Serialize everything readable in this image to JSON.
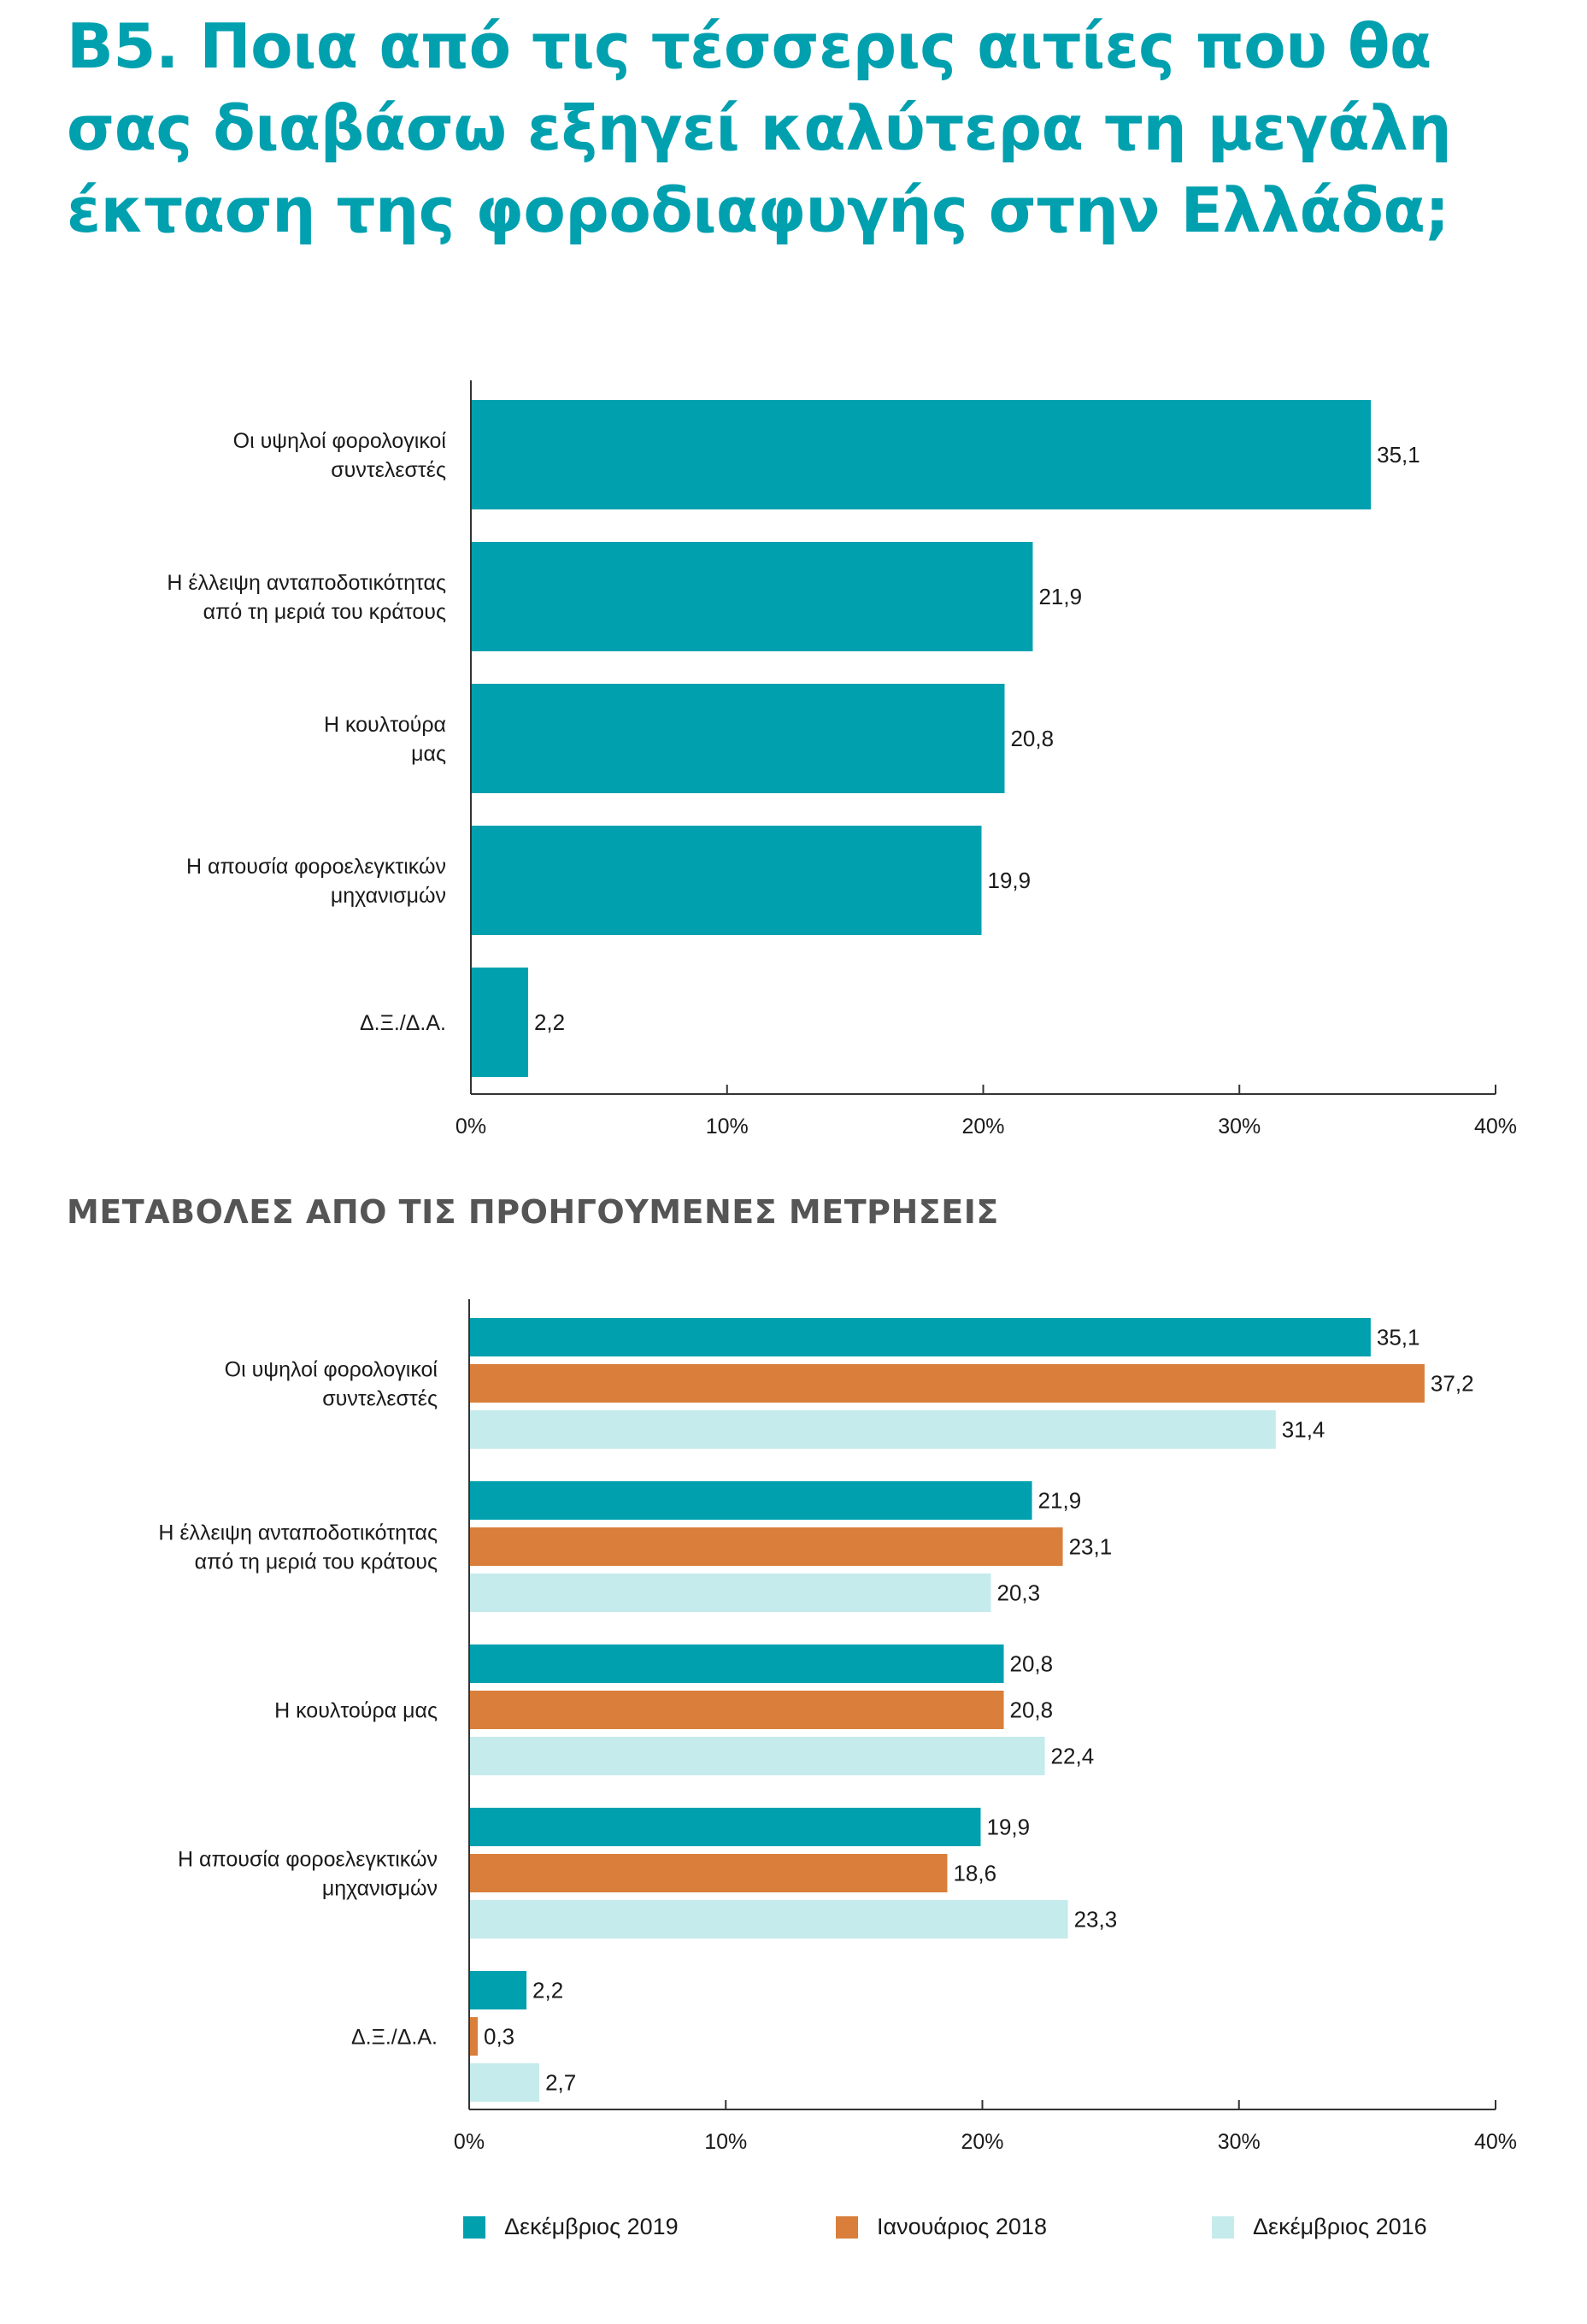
{
  "title": "Β5. Ποια από τις τέσσερις αιτίες που θα σας διαβάσω εξηγεί καλύτερα τη μεγάλη έκταση της φοροδιαφυγής στην Ελλάδα;",
  "subheading": "ΜΕΤΑΒΟΛΕΣ ΑΠΟ ΤΙΣ ΠΡΟΗΓΟΥΜΕΝΕΣ ΜΕΤΡΗΣΕΙΣ",
  "colors": {
    "dec2019": "#00A0AF",
    "jan2018": "#D97F3B",
    "dec2016": "#C5EBEC",
    "axis": "#333333"
  },
  "chart_data": [
    {
      "type": "bar",
      "orientation": "horizontal",
      "categories": [
        [
          "Οι υψηλοί φορολογικοί",
          "συντελεστές"
        ],
        [
          "Η έλλειψη ανταποδοτικότητας",
          "από τη  μεριά του κράτους"
        ],
        [
          "Η κουλτούρα",
          "μας"
        ],
        [
          "Η απουσία φοροελεγκτικών",
          "μηχανισμών"
        ],
        [
          "Δ.Ξ./Δ.Α."
        ]
      ],
      "series": [
        {
          "values": [
            35.1,
            21.9,
            20.8,
            19.9,
            2.2
          ],
          "labels": [
            "35,1",
            "21,9",
            "20,8",
            "19,9",
            "2,2"
          ],
          "color": "#00A0AF"
        }
      ],
      "xlim": [
        0,
        40
      ],
      "ticks": [
        0,
        10,
        20,
        30,
        40
      ],
      "tick_labels": [
        "0%",
        "10%",
        "20%",
        "30%",
        "40%"
      ],
      "grid": false
    },
    {
      "type": "bar",
      "orientation": "horizontal",
      "categories": [
        [
          "Οι υψηλοί φορολογικοί",
          "συντελεστές"
        ],
        [
          "Η έλλειψη ανταποδοτικότητας",
          "από τη μεριά του κράτους"
        ],
        [
          "Η κουλτούρα μας"
        ],
        [
          "Η απουσία φοροελεγκτικών",
          "μηχανισμών"
        ],
        [
          "Δ.Ξ./Δ.Α."
        ]
      ],
      "series": [
        {
          "name": "Δεκέμβριος 2019",
          "color": "#00A0AF",
          "values": [
            35.1,
            21.9,
            20.8,
            19.9,
            2.2
          ],
          "labels": [
            "35,1",
            "21,9",
            "20,8",
            "19,9",
            "2,2"
          ]
        },
        {
          "name": "Ιανουάριος 2018",
          "color": "#D97F3B",
          "values": [
            37.2,
            23.1,
            20.8,
            18.6,
            0.3
          ],
          "labels": [
            "37,2",
            "23,1",
            "20,8",
            "18,6",
            "0,3"
          ]
        },
        {
          "name": "Δεκέμβριος 2016",
          "color": "#C5EBEC",
          "values": [
            31.4,
            20.3,
            22.4,
            23.3,
            2.7
          ],
          "labels": [
            "31,4",
            "20,3",
            "22,4",
            "23,3",
            "2,7"
          ]
        }
      ],
      "xlim": [
        0,
        40
      ],
      "ticks": [
        0,
        10,
        20,
        30,
        40
      ],
      "tick_labels": [
        "0%",
        "10%",
        "20%",
        "30%",
        "40%"
      ],
      "grid": false,
      "legend": "bottom"
    }
  ]
}
